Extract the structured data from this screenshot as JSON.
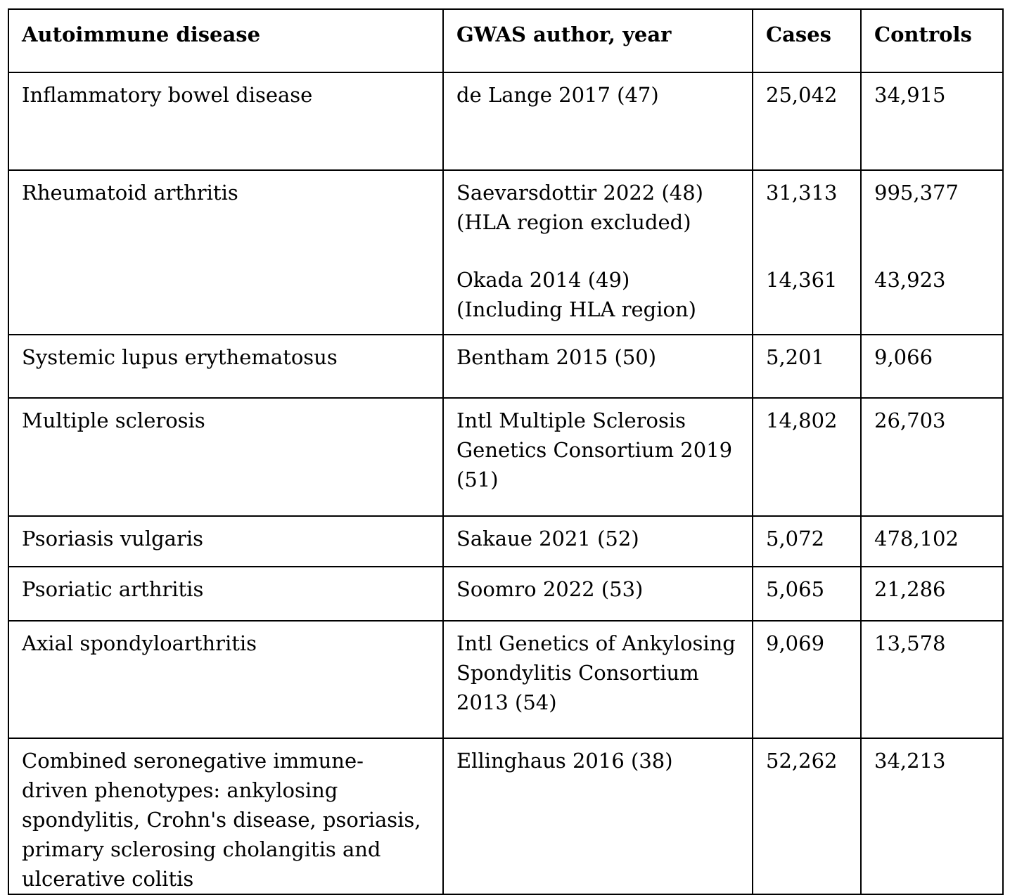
{
  "table": {
    "headers": [
      "Autoimmune disease",
      "GWAS author, year",
      "Cases",
      "Controls"
    ],
    "rows": [
      {
        "disease": [
          "Inflammatory bowel disease"
        ],
        "studies": [
          {
            "author_lines": [
              "de Lange 2017 (47)"
            ],
            "cases": "25,042",
            "controls": "34,915"
          }
        ]
      },
      {
        "disease": [
          "Rheumatoid arthritis"
        ],
        "studies": [
          {
            "author_lines": [
              "Saevarsdottir 2022 (48)",
              "(HLA region excluded)"
            ],
            "cases": "31,313",
            "controls": "995,377"
          },
          {
            "author_lines": [
              "Okada 2014 (49)",
              "(Including HLA region)"
            ],
            "cases": "14,361",
            "controls": "43,923"
          }
        ]
      },
      {
        "disease": [
          "Systemic lupus erythematosus"
        ],
        "studies": [
          {
            "author_lines": [
              "Bentham 2015 (50)"
            ],
            "cases": "5,201",
            "controls": "9,066"
          }
        ]
      },
      {
        "disease": [
          "Multiple sclerosis"
        ],
        "studies": [
          {
            "author_lines": [
              "Intl Multiple Sclerosis",
              "Genetics Consortium 2019",
              "(51)"
            ],
            "cases": "14,802",
            "controls": "26,703"
          }
        ]
      },
      {
        "disease": [
          "Psoriasis vulgaris"
        ],
        "studies": [
          {
            "author_lines": [
              "Sakaue 2021 (52)"
            ],
            "cases": "5,072",
            "controls": "478,102"
          }
        ]
      },
      {
        "disease": [
          "Psoriatic arthritis"
        ],
        "studies": [
          {
            "author_lines": [
              "Soomro 2022 (53)"
            ],
            "cases": "5,065",
            "controls": "21,286"
          }
        ]
      },
      {
        "disease": [
          "Axial spondyloarthritis"
        ],
        "studies": [
          {
            "author_lines": [
              "Intl Genetics of Ankylosing",
              "Spondylitis Consortium",
              "2013 (54)"
            ],
            "cases": "9,069",
            "controls": "13,578"
          }
        ]
      },
      {
        "disease": [
          "Combined seronegative immune-",
          "driven phenotypes: ankylosing",
          "spondylitis, Crohn's disease, psoriasis,",
          "primary sclerosing cholangitis and",
          "ulcerative colitis"
        ],
        "studies": [
          {
            "author_lines": [
              "Ellinghaus 2016 (38)"
            ],
            "cases": "52,262",
            "controls": "34,213"
          }
        ]
      }
    ]
  }
}
